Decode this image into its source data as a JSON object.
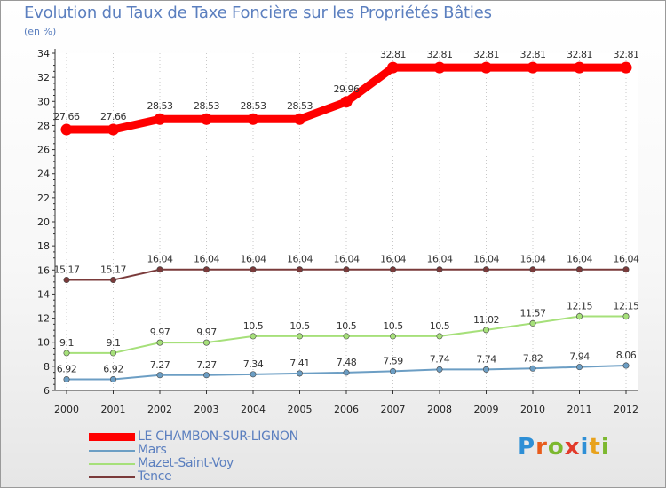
{
  "title": "Evolution du Taux de Taxe Foncière sur les Propriétés Bâties",
  "unit_label": "(en %)",
  "brand": {
    "name": "Proxiti",
    "letters": [
      "P",
      "r",
      "o",
      "x",
      "i",
      "t",
      "i"
    ],
    "colors": [
      "#2e8fd6",
      "#e85c1c",
      "#7cb82f",
      "#e23a2a",
      "#2e8fd6",
      "#e8a21c",
      "#7cb82f"
    ]
  },
  "chart_data": {
    "type": "line",
    "title": "Evolution du Taux de Taxe Foncière sur les Propriétés Bâties",
    "ylabel": "(en %)",
    "xlabel": "",
    "categories": [
      "2000",
      "2001",
      "2002",
      "2003",
      "2004",
      "2005",
      "2006",
      "2007",
      "2008",
      "2009",
      "2010",
      "2011",
      "2012"
    ],
    "ylim": [
      6,
      34
    ],
    "yticks": [
      "6",
      "8",
      "10",
      "12",
      "14",
      "16",
      "18",
      "20",
      "22",
      "24",
      "26",
      "28",
      "30",
      "32",
      "34"
    ],
    "legend_position": "bottom-left",
    "series": [
      {
        "name": "LE CHAMBON-SUR-LIGNON",
        "color": "#ff0000",
        "values": [
          27.66,
          27.66,
          28.53,
          28.53,
          28.53,
          28.53,
          29.96,
          32.81,
          32.81,
          32.81,
          32.81,
          32.81,
          32.81
        ],
        "labels": [
          "27.66",
          "27.66",
          "28.53",
          "28.53",
          "28.53",
          "28.53",
          "29.96",
          "32.81",
          "32.81",
          "32.81",
          "32.81",
          "32.81",
          "32.81"
        ]
      },
      {
        "name": "Mars",
        "color": "#6c9ec4",
        "values": [
          6.92,
          6.92,
          7.27,
          7.27,
          7.34,
          7.41,
          7.48,
          7.59,
          7.74,
          7.74,
          7.82,
          7.94,
          8.06
        ],
        "labels": [
          "6.92",
          "6.92",
          "7.27",
          "7.27",
          "7.34",
          "7.41",
          "7.48",
          "7.59",
          "7.74",
          "7.74",
          "7.82",
          "7.94",
          "8.06"
        ]
      },
      {
        "name": "Mazet-Saint-Voy",
        "color": "#a6e07a",
        "values": [
          9.1,
          9.1,
          9.97,
          9.97,
          10.5,
          10.5,
          10.5,
          10.5,
          10.5,
          11.02,
          11.57,
          12.15,
          12.15
        ],
        "labels": [
          "9.1",
          "9.1",
          "9.97",
          "9.97",
          "10.5",
          "10.5",
          "10.5",
          "10.5",
          "10.5",
          "11.02",
          "11.57",
          "12.15",
          "12.15"
        ]
      },
      {
        "name": "Tence",
        "color": "#7a3a3a",
        "values": [
          15.17,
          15.17,
          16.04,
          16.04,
          16.04,
          16.04,
          16.04,
          16.04,
          16.04,
          16.04,
          16.04,
          16.04,
          16.04
        ],
        "labels": [
          "15.17",
          "15.17",
          "16.04",
          "16.04",
          "16.04",
          "16.04",
          "16.04",
          "16.04",
          "16.04",
          "16.04",
          "16.04",
          "16.04",
          "16.04"
        ]
      }
    ]
  }
}
